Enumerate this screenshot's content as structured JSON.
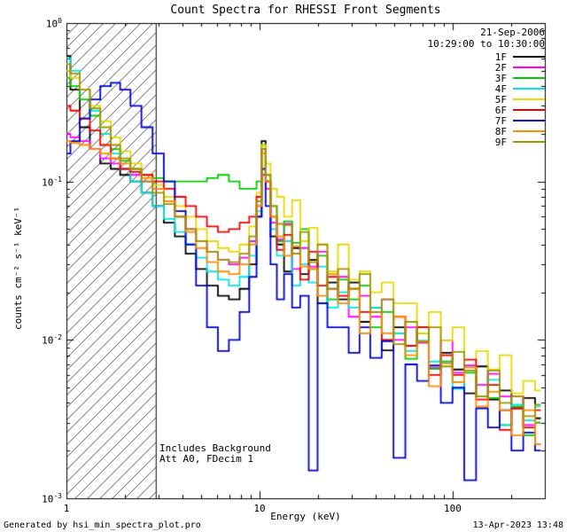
{
  "header": {
    "date": "21-Sep-2006",
    "time_range": "10:29:00 to 10:30:00"
  },
  "footer": {
    "generated_by": "Generated by hsi_min_spectra_plot.pro",
    "datetime": "13-Apr-2023 13:48"
  },
  "chart_data": {
    "type": "line",
    "title": "Count Spectra for RHESSI Front Segments",
    "xlabel": "Energy (keV)",
    "ylabel": "counts cm⁻² s⁻¹ keV⁻¹",
    "xscale": "log",
    "yscale": "log",
    "xlim": [
      1,
      300
    ],
    "ylim": [
      0.001,
      1.0
    ],
    "xticks": [
      1,
      10,
      100
    ],
    "yticks": [
      1.0,
      0.1,
      0.01,
      0.001
    ],
    "grid": false,
    "legend_position": "top-right",
    "annotations": [
      "Includes Background",
      "Att A0, FDecim 1"
    ],
    "excluded_region": {
      "xmin": 1.0,
      "xmax": 2.9,
      "style": "diagonal-hatch"
    },
    "x": [
      1.0,
      1.1,
      1.25,
      1.4,
      1.6,
      1.8,
      2.0,
      2.3,
      2.6,
      3.0,
      3.4,
      3.9,
      4.4,
      5.0,
      5.7,
      6.5,
      7.4,
      8.4,
      9.3,
      10.0,
      10.5,
      11.0,
      11.8,
      12.8,
      14,
      15.5,
      17,
      19,
      21,
      24,
      27,
      31,
      35,
      40,
      46,
      53,
      61,
      70,
      81,
      93,
      107,
      123,
      142,
      163,
      188,
      216,
      249,
      286
    ],
    "series": [
      {
        "name": "1F",
        "color": "#000000",
        "values": [
          0.62,
          0.38,
          0.22,
          0.16,
          0.13,
          0.12,
          0.11,
          0.1,
          0.085,
          0.07,
          0.055,
          0.045,
          0.035,
          0.028,
          0.022,
          0.019,
          0.018,
          0.021,
          0.03,
          0.06,
          0.18,
          0.1,
          0.045,
          0.04,
          0.027,
          0.038,
          0.026,
          0.032,
          0.017,
          0.023,
          0.018,
          0.023,
          0.013,
          0.016,
          0.0086,
          0.012,
          0.0092,
          0.012,
          0.0066,
          0.0083,
          0.0065,
          0.0046,
          0.0068,
          0.0042,
          0.0048,
          0.0037,
          0.0043,
          0.0032
        ]
      },
      {
        "name": "2F",
        "color": "#ff00ff",
        "values": [
          0.2,
          0.19,
          0.18,
          0.16,
          0.14,
          0.13,
          0.12,
          0.11,
          0.1,
          0.09,
          0.075,
          0.06,
          0.05,
          0.042,
          0.036,
          0.032,
          0.03,
          0.033,
          0.042,
          0.07,
          0.11,
          0.09,
          0.055,
          0.043,
          0.054,
          0.028,
          0.038,
          0.029,
          0.036,
          0.021,
          0.025,
          0.014,
          0.019,
          0.014,
          0.018,
          0.01,
          0.012,
          0.0096,
          0.0067,
          0.0099,
          0.0062,
          0.0069,
          0.0052,
          0.0061,
          0.0044,
          0.0044,
          0.0029,
          0.0022
        ]
      },
      {
        "name": "3F",
        "color": "#00cc00",
        "values": [
          0.45,
          0.4,
          0.33,
          0.26,
          0.2,
          0.16,
          0.135,
          0.12,
          0.11,
          0.105,
          0.1,
          0.1,
          0.1,
          0.1,
          0.105,
          0.11,
          0.1,
          0.09,
          0.09,
          0.1,
          0.17,
          0.11,
          0.07,
          0.042,
          0.056,
          0.041,
          0.05,
          0.028,
          0.034,
          0.018,
          0.024,
          0.018,
          0.022,
          0.012,
          0.015,
          0.011,
          0.0076,
          0.011,
          0.0066,
          0.0073,
          0.0054,
          0.0062,
          0.0044,
          0.0043,
          0.0029,
          0.0038,
          0.0025,
          0.003
        ]
      },
      {
        "name": "4F",
        "color": "#00e5e5",
        "values": [
          0.6,
          0.5,
          0.38,
          0.28,
          0.2,
          0.15,
          0.12,
          0.1,
          0.085,
          0.07,
          0.058,
          0.048,
          0.04,
          0.033,
          0.027,
          0.024,
          0.022,
          0.025,
          0.034,
          0.065,
          0.16,
          0.1,
          0.05,
          0.034,
          0.042,
          0.022,
          0.03,
          0.023,
          0.029,
          0.016,
          0.02,
          0.016,
          0.011,
          0.016,
          0.01,
          0.011,
          0.0085,
          0.0099,
          0.0073,
          0.0072,
          0.0049,
          0.0067,
          0.0044,
          0.0056,
          0.0029,
          0.0039,
          0.0031,
          0.0038
        ]
      },
      {
        "name": "5F",
        "color": "#e8d800",
        "values": [
          0.5,
          0.45,
          0.38,
          0.3,
          0.24,
          0.19,
          0.155,
          0.13,
          0.11,
          0.095,
          0.08,
          0.07,
          0.06,
          0.05,
          0.042,
          0.038,
          0.036,
          0.04,
          0.052,
          0.085,
          0.17,
          0.13,
          0.09,
          0.08,
          0.06,
          0.076,
          0.042,
          0.051,
          0.04,
          0.027,
          0.04,
          0.024,
          0.027,
          0.02,
          0.023,
          0.017,
          0.017,
          0.011,
          0.015,
          0.0099,
          0.012,
          0.0064,
          0.0085,
          0.0065,
          0.008,
          0.0046,
          0.0055,
          0.0048
        ]
      },
      {
        "name": "6F",
        "color": "#ee0000",
        "values": [
          0.3,
          0.28,
          0.25,
          0.21,
          0.17,
          0.14,
          0.12,
          0.115,
          0.11,
          0.1,
          0.09,
          0.08,
          0.07,
          0.06,
          0.052,
          0.048,
          0.05,
          0.055,
          0.06,
          0.08,
          0.16,
          0.1,
          0.06,
          0.037,
          0.046,
          0.035,
          0.024,
          0.036,
          0.022,
          0.025,
          0.019,
          0.021,
          0.015,
          0.015,
          0.01,
          0.014,
          0.0092,
          0.012,
          0.006,
          0.008,
          0.006,
          0.0075,
          0.0042,
          0.0052,
          0.0027,
          0.0037,
          0.0028,
          0.0036
        ]
      },
      {
        "name": "7F",
        "color": "#0000cc",
        "values": [
          0.15,
          0.18,
          0.25,
          0.33,
          0.4,
          0.42,
          0.38,
          0.3,
          0.22,
          0.15,
          0.1,
          0.065,
          0.04,
          0.022,
          0.012,
          0.0085,
          0.01,
          0.015,
          0.025,
          0.06,
          0.12,
          0.07,
          0.03,
          0.018,
          0.026,
          0.016,
          0.019,
          0.0015,
          0.017,
          0.012,
          0.012,
          0.0083,
          0.012,
          0.0077,
          0.0098,
          0.0018,
          0.007,
          0.0055,
          0.0069,
          0.004,
          0.005,
          0.0013,
          0.0037,
          0.0028,
          0.0036,
          0.002,
          0.0026,
          0.002
        ]
      },
      {
        "name": "8F",
        "color": "#ff8c00",
        "values": [
          0.18,
          0.175,
          0.17,
          0.16,
          0.15,
          0.14,
          0.13,
          0.12,
          0.105,
          0.09,
          0.075,
          0.06,
          0.048,
          0.038,
          0.031,
          0.027,
          0.026,
          0.03,
          0.04,
          0.07,
          0.15,
          0.1,
          0.06,
          0.045,
          0.034,
          0.039,
          0.029,
          0.028,
          0.019,
          0.026,
          0.017,
          0.021,
          0.011,
          0.015,
          0.011,
          0.014,
          0.008,
          0.0098,
          0.0051,
          0.0071,
          0.0054,
          0.0067,
          0.0038,
          0.0047,
          0.0036,
          0.0025,
          0.0036,
          0.0022
        ]
      },
      {
        "name": "9F",
        "color": "#9f9500",
        "values": [
          0.55,
          0.48,
          0.38,
          0.29,
          0.22,
          0.17,
          0.14,
          0.12,
          0.1,
          0.085,
          0.072,
          0.06,
          0.05,
          0.042,
          0.036,
          0.032,
          0.031,
          0.035,
          0.045,
          0.075,
          0.16,
          0.11,
          0.07,
          0.054,
          0.053,
          0.035,
          0.048,
          0.031,
          0.04,
          0.021,
          0.028,
          0.021,
          0.026,
          0.015,
          0.018,
          0.0094,
          0.013,
          0.0097,
          0.012,
          0.0068,
          0.0084,
          0.0064,
          0.0044,
          0.0064,
          0.004,
          0.0044,
          0.0033,
          0.0039
        ]
      }
    ]
  }
}
